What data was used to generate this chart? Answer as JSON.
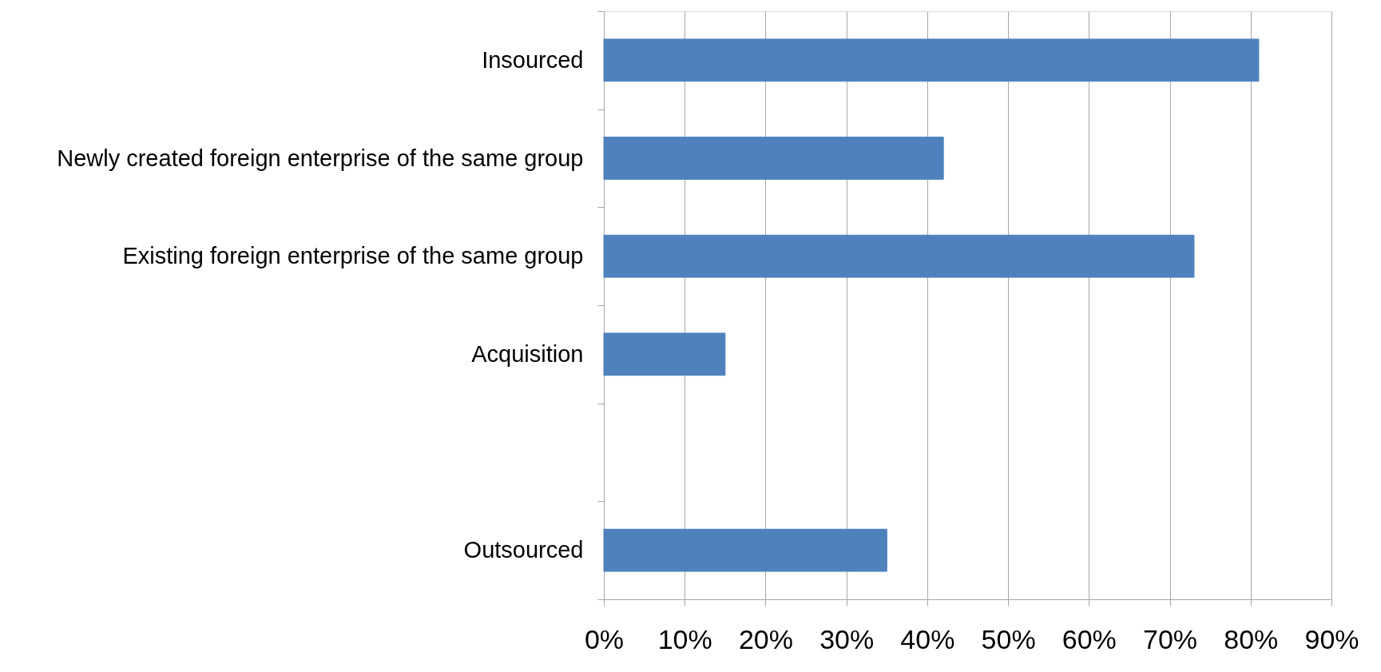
{
  "chart_data": {
    "type": "bar",
    "orientation": "horizontal",
    "categories": [
      "Insourced",
      "Newly created foreign enterprise of the same group",
      "Existing foreign enterprise of the same group",
      "Acquisition",
      null,
      "Outsourced"
    ],
    "values": [
      81,
      42,
      73,
      15,
      null,
      35
    ],
    "color": "#4f81bd",
    "xlim": [
      0,
      90
    ],
    "xticks": [
      {
        "value": 0,
        "label": "0%"
      },
      {
        "value": 10,
        "label": "10%"
      },
      {
        "value": 20,
        "label": "20%"
      },
      {
        "value": 30,
        "label": "30%"
      },
      {
        "value": 40,
        "label": "40%"
      },
      {
        "value": 50,
        "label": "50%"
      },
      {
        "value": 60,
        "label": "60%"
      },
      {
        "value": 70,
        "label": "70%"
      },
      {
        "value": 80,
        "label": "80%"
      },
      {
        "value": 90,
        "label": "90%"
      }
    ],
    "grid": "x"
  }
}
